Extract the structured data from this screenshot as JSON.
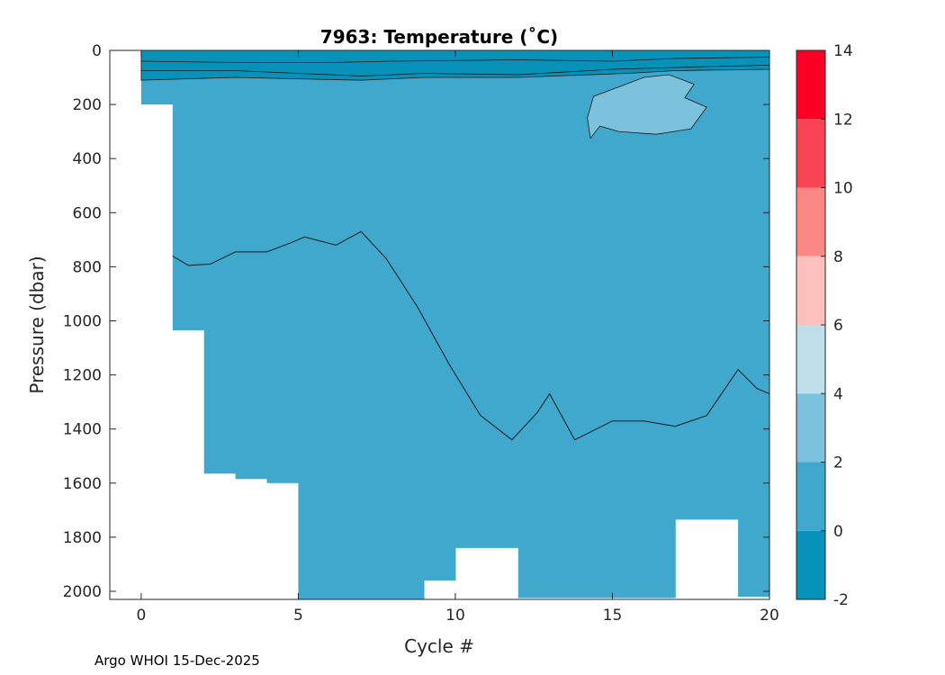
{
  "chart_data": {
    "type": "heatmap",
    "title": "7963:  Temperature (˚C)",
    "xlabel": "Cycle #",
    "ylabel": "Pressure (dbar)",
    "xlim": [
      -1,
      20
    ],
    "ylim": [
      2030,
      0
    ],
    "x_ticks": [
      0,
      5,
      10,
      15,
      20
    ],
    "y_ticks": [
      0,
      200,
      400,
      600,
      800,
      1000,
      1200,
      1400,
      1600,
      1800,
      2000
    ],
    "colorbar": {
      "ticks": [
        -2,
        0,
        2,
        4,
        6,
        8,
        10,
        12,
        14
      ],
      "bands": [
        {
          "from": -2,
          "to": 0,
          "color": "#0891b9"
        },
        {
          "from": 0,
          "to": 2,
          "color": "#3fa8cc"
        },
        {
          "from": 2,
          "to": 4,
          "color": "#7dc2dc"
        },
        {
          "from": 4,
          "to": 6,
          "color": "#bfe0ea"
        },
        {
          "from": 6,
          "to": 8,
          "color": "#fec0bc"
        },
        {
          "from": 8,
          "to": 10,
          "color": "#fb8884"
        },
        {
          "from": 10,
          "to": 12,
          "color": "#f84354"
        },
        {
          "from": 12,
          "to": 14,
          "color": "#fb0024"
        }
      ]
    },
    "max_pressure_by_cycle": [
      {
        "x0": 0,
        "x1": 1,
        "p": 200
      },
      {
        "x0": 1,
        "x1": 2,
        "p": 1035
      },
      {
        "x0": 2,
        "x1": 3,
        "p": 1565
      },
      {
        "x0": 3,
        "x1": 4,
        "p": 1585
      },
      {
        "x0": 4,
        "x1": 5,
        "p": 1600
      },
      {
        "x0": 5,
        "x1": 9,
        "p": 2030
      },
      {
        "x0": 9,
        "x1": 10,
        "p": 1960
      },
      {
        "x0": 10,
        "x1": 12,
        "p": 1840
      },
      {
        "x0": 12,
        "x1": 17,
        "p": 2025
      },
      {
        "x0": 17,
        "x1": 19,
        "p": 1735
      },
      {
        "x0": 19,
        "x1": 20,
        "p": 2020
      }
    ],
    "surface_cold_layer": [
      [
        0,
        0
      ],
      [
        3,
        0
      ],
      [
        6,
        0
      ],
      [
        9,
        0
      ],
      [
        12,
        0
      ],
      [
        15,
        0
      ],
      [
        20,
        0
      ],
      [
        20,
        70
      ],
      [
        17,
        75
      ],
      [
        15.5,
        85
      ],
      [
        12,
        100
      ],
      [
        9,
        100
      ],
      [
        7,
        110
      ],
      [
        5,
        105
      ],
      [
        3,
        100
      ],
      [
        0,
        110
      ]
    ],
    "warm_patch_2to4": [
      [
        14.2,
        250
      ],
      [
        14.4,
        170
      ],
      [
        15.2,
        135
      ],
      [
        16.0,
        100
      ],
      [
        16.8,
        90
      ],
      [
        17.6,
        125
      ],
      [
        17.3,
        175
      ],
      [
        18.0,
        210
      ],
      [
        17.5,
        290
      ],
      [
        16.4,
        310
      ],
      [
        15.2,
        300
      ],
      [
        14.6,
        280
      ],
      [
        14.3,
        325
      ]
    ],
    "isotherm_1C": [
      [
        1.0,
        760
      ],
      [
        1.5,
        795
      ],
      [
        2.2,
        790
      ],
      [
        3.0,
        745
      ],
      [
        4.0,
        745
      ],
      [
        4.8,
        710
      ],
      [
        5.2,
        690
      ],
      [
        6.2,
        720
      ],
      [
        7.0,
        670
      ],
      [
        7.8,
        770
      ],
      [
        8.8,
        950
      ],
      [
        9.8,
        1160
      ],
      [
        10.8,
        1350
      ],
      [
        11.8,
        1440
      ],
      [
        12.6,
        1340
      ],
      [
        13.0,
        1270
      ],
      [
        13.8,
        1440
      ],
      [
        15.0,
        1370
      ],
      [
        16.0,
        1370
      ],
      [
        17.0,
        1390
      ],
      [
        18.0,
        1350
      ],
      [
        19.0,
        1180
      ],
      [
        19.6,
        1250
      ],
      [
        20.0,
        1270
      ]
    ]
  },
  "footer_text": "Argo WHOI 15-Dec-2025"
}
